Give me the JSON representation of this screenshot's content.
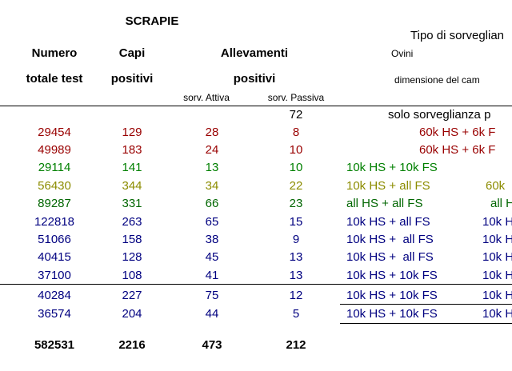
{
  "title": "SCRAPIE",
  "header": {
    "tipo": "Tipo di sorveglian",
    "numero": "Numero",
    "capi": "Capi",
    "allevamenti": "Allevamenti",
    "ovini": "Ovini",
    "totale_test": "totale test",
    "capi_positivi": "positivi",
    "allevamenti_positivi": "positivi",
    "dimensione": "dimensione del cam",
    "attiva": "sorv. Attiva",
    "passiva": "sorv. Passiva"
  },
  "table": {
    "rows": [
      {
        "color": "#000000",
        "passiva": 72,
        "tipo": [
          "solo sorveglianza p"
        ]
      },
      {
        "color": "#990000",
        "totale_test": 29454,
        "capi": 129,
        "attiva": 28,
        "passiva": 8,
        "tipo": [
          "60k HS + 6k F"
        ]
      },
      {
        "color": "#990000",
        "totale_test": 49989,
        "capi": 183,
        "attiva": 24,
        "passiva": 10,
        "tipo": [
          "60k HS + 6k F"
        ]
      },
      {
        "color": "#008000",
        "totale_test": 29114,
        "capi": 141,
        "attiva": 13,
        "passiva": 10,
        "tipo": [
          "10k HS + 10k FS"
        ]
      },
      {
        "color": "#8c8c00",
        "totale_test": 56430,
        "capi": 344,
        "attiva": 34,
        "passiva": 22,
        "tipo": [
          "10k HS + all FS",
          "60k"
        ]
      },
      {
        "color": "#006600",
        "totale_test": 89287,
        "capi": 331,
        "attiva": 66,
        "passiva": 23,
        "tipo": [
          "all HS + all FS",
          "all H"
        ]
      },
      {
        "color": "#000080",
        "totale_test": 122818,
        "capi": 263,
        "attiva": 65,
        "passiva": 15,
        "tipo": [
          "10k HS + all FS",
          "10k H"
        ]
      },
      {
        "color": "#000080",
        "totale_test": 51066,
        "capi": 158,
        "attiva": 38,
        "passiva": 9,
        "tipo": [
          "10k HS +  all FS",
          "10k H"
        ]
      },
      {
        "color": "#000080",
        "totale_test": 40415,
        "capi": 128,
        "attiva": 45,
        "passiva": 13,
        "tipo": [
          "10k HS +  all FS",
          "10k H"
        ]
      },
      {
        "color": "#000080",
        "totale_test": 37100,
        "capi": 108,
        "attiva": 41,
        "passiva": 13,
        "tipo": [
          "10k HS + 10k FS",
          "10k H"
        ]
      },
      {
        "color": "#000080",
        "totale_test": 40284,
        "capi": 227,
        "attiva": 75,
        "passiva": 12,
        "tipo": [
          "10k HS + 10k FS",
          "10k H"
        ]
      },
      {
        "color": "#000080",
        "totale_test": 36574,
        "capi": 204,
        "attiva": 44,
        "passiva": 5,
        "tipo": [
          "10k HS + 10k FS",
          "10k H"
        ]
      }
    ],
    "totals": {
      "totale_test": 582531,
      "capi": 2216,
      "attiva": 473,
      "passiva": 212
    }
  }
}
